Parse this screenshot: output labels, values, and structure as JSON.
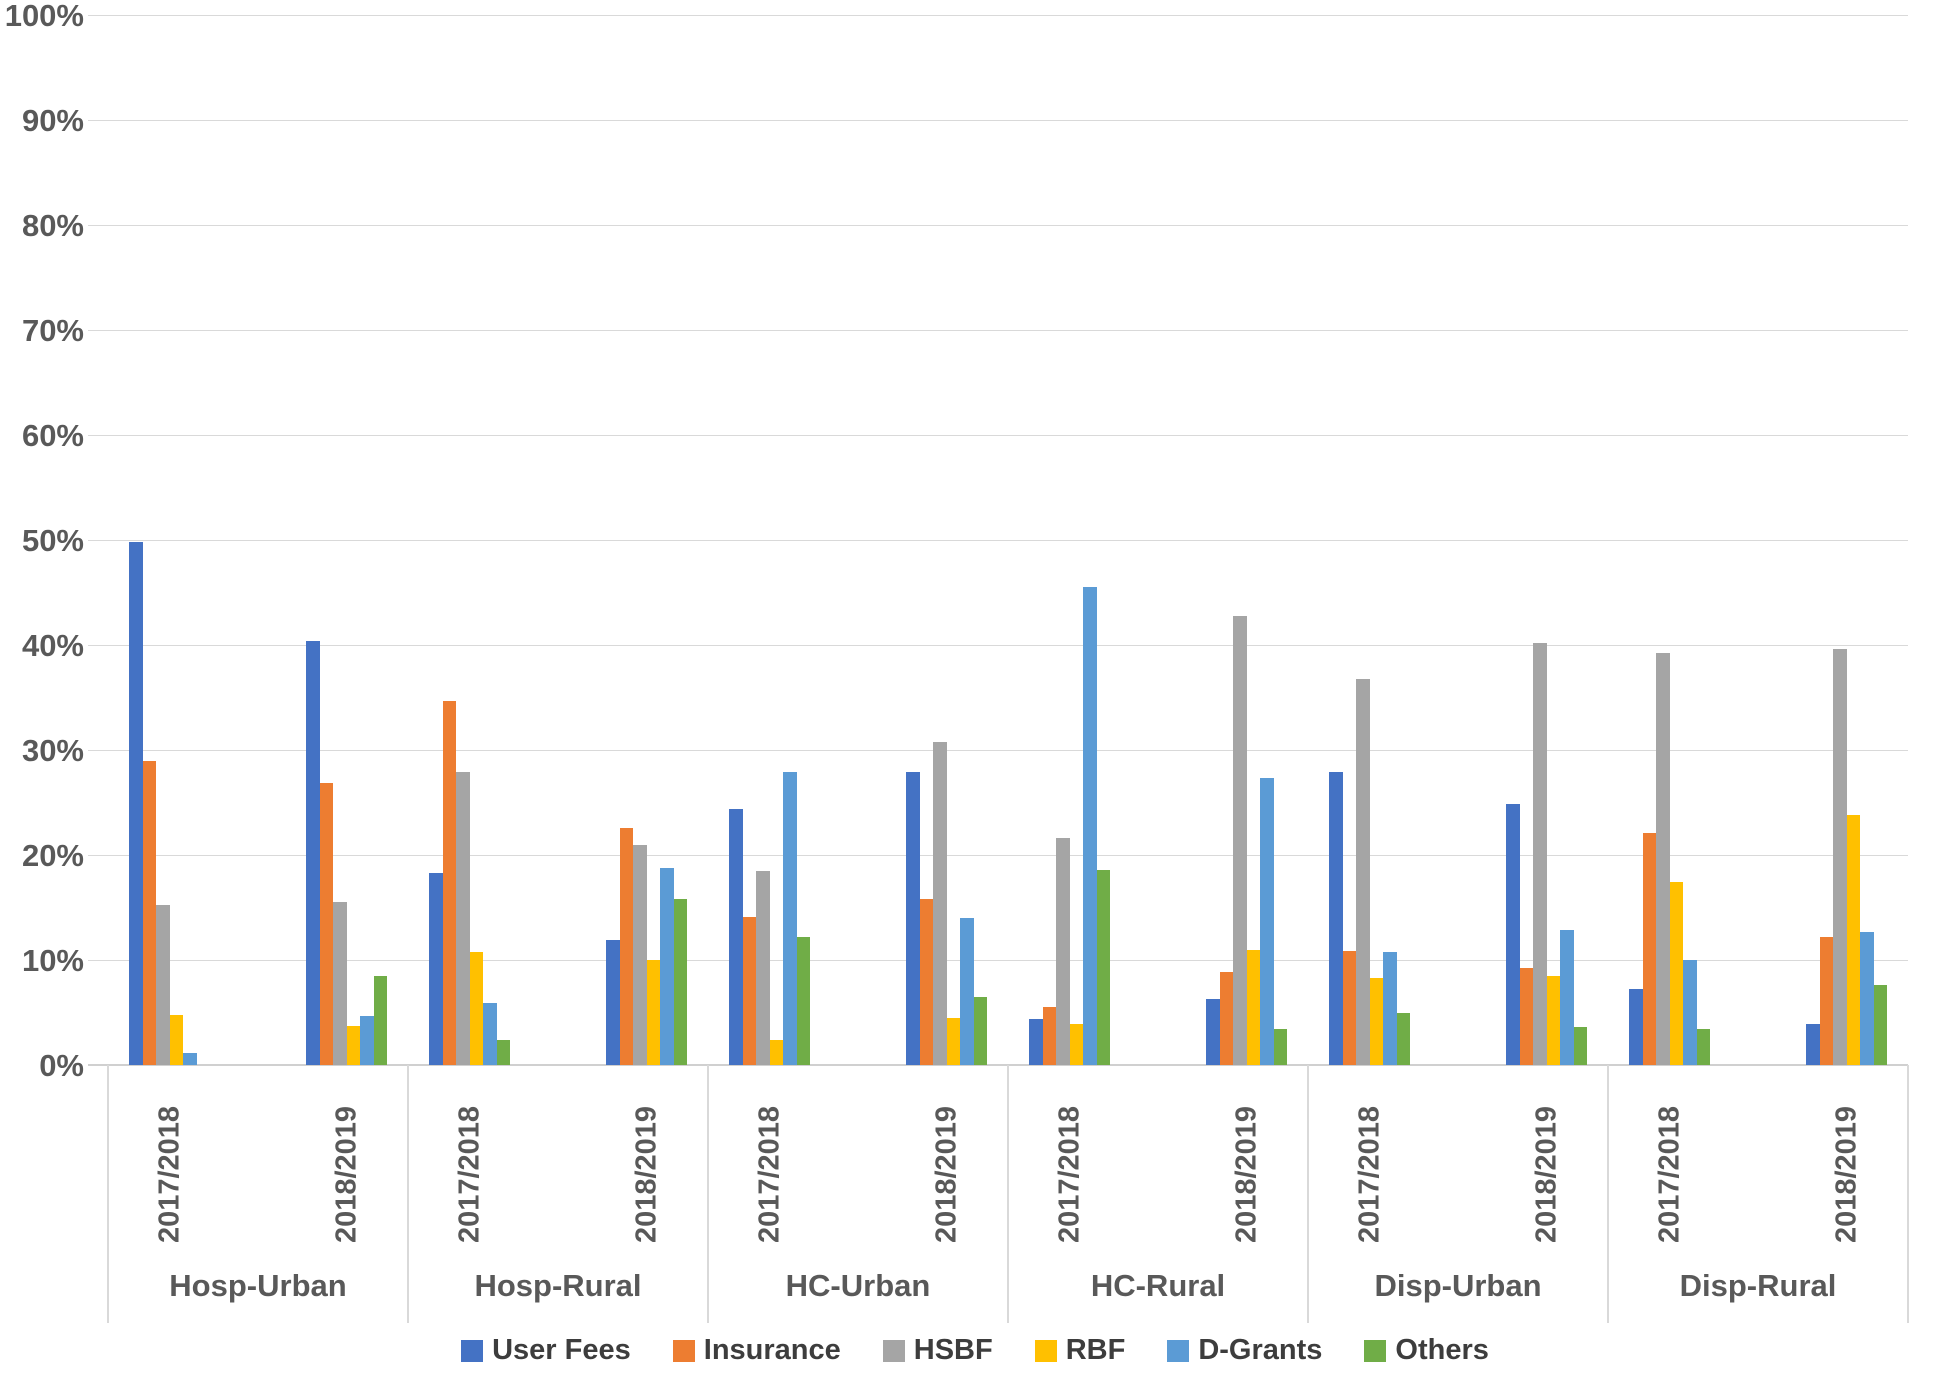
{
  "chart_data": {
    "type": "bar",
    "title": "",
    "xlabel": "",
    "ylabel": "",
    "ylim": [
      0,
      100
    ],
    "y_tick_step": 10,
    "y_tick_labels": [
      "0%",
      "10%",
      "20%",
      "30%",
      "40%",
      "50%",
      "60%",
      "70%",
      "80%",
      "90%",
      "100%"
    ],
    "grid": true,
    "legend_position": "bottom",
    "series": [
      {
        "name": "User Fees",
        "color": "#4472C4"
      },
      {
        "name": "Insurance",
        "color": "#ED7D31"
      },
      {
        "name": "HSBF",
        "color": "#A5A5A5"
      },
      {
        "name": "RBF",
        "color": "#FFC000"
      },
      {
        "name": "D-Grants",
        "color": "#5B9BD5"
      },
      {
        "name": "Others",
        "color": "#70AD47"
      }
    ],
    "groups": [
      {
        "label": "Hosp-Urban",
        "categories": [
          {
            "label": "2017/2018",
            "values": [
              49.8,
              29.0,
              15.2,
              4.8,
              1.1,
              0.0
            ]
          },
          {
            "label": "2018/2019",
            "values": [
              40.4,
              26.9,
              15.5,
              3.7,
              4.7,
              8.5
            ]
          }
        ]
      },
      {
        "label": "Hosp-Rural",
        "categories": [
          {
            "label": "2017/2018",
            "values": [
              18.3,
              34.7,
              27.9,
              10.8,
              5.9,
              2.4
            ]
          },
          {
            "label": "2018/2019",
            "values": [
              11.9,
              22.6,
              21.0,
              10.0,
              18.8,
              15.8
            ]
          }
        ]
      },
      {
        "label": "HC-Urban",
        "categories": [
          {
            "label": "2017/2018",
            "values": [
              24.4,
              14.1,
              18.5,
              2.4,
              27.9,
              12.2
            ]
          },
          {
            "label": "2018/2019",
            "values": [
              27.9,
              15.8,
              30.8,
              4.5,
              14.0,
              6.5
            ]
          }
        ]
      },
      {
        "label": "HC-Rural",
        "categories": [
          {
            "label": "2017/2018",
            "values": [
              4.4,
              5.5,
              21.6,
              3.9,
              45.5,
              18.6
            ]
          },
          {
            "label": "2018/2019",
            "values": [
              6.3,
              8.9,
              42.8,
              11.0,
              27.3,
              3.4
            ]
          }
        ]
      },
      {
        "label": "Disp-Urban",
        "categories": [
          {
            "label": "2017/2018",
            "values": [
              27.9,
              10.9,
              36.8,
              8.3,
              10.8,
              5.0
            ]
          },
          {
            "label": "2018/2019",
            "values": [
              24.9,
              9.2,
              40.2,
              8.5,
              12.9,
              3.6
            ]
          }
        ]
      },
      {
        "label": "Disp-Rural",
        "categories": [
          {
            "label": "2017/2018",
            "values": [
              7.2,
              22.1,
              39.2,
              17.4,
              10.0,
              3.4
            ]
          },
          {
            "label": "2018/2019",
            "values": [
              3.9,
              12.2,
              39.6,
              23.8,
              12.7,
              7.6
            ]
          }
        ]
      }
    ]
  },
  "colors": {
    "gridline": "#d9d9d9",
    "axis_text": "#595959",
    "legend_text": "#3d3d3d",
    "background": "#ffffff"
  }
}
